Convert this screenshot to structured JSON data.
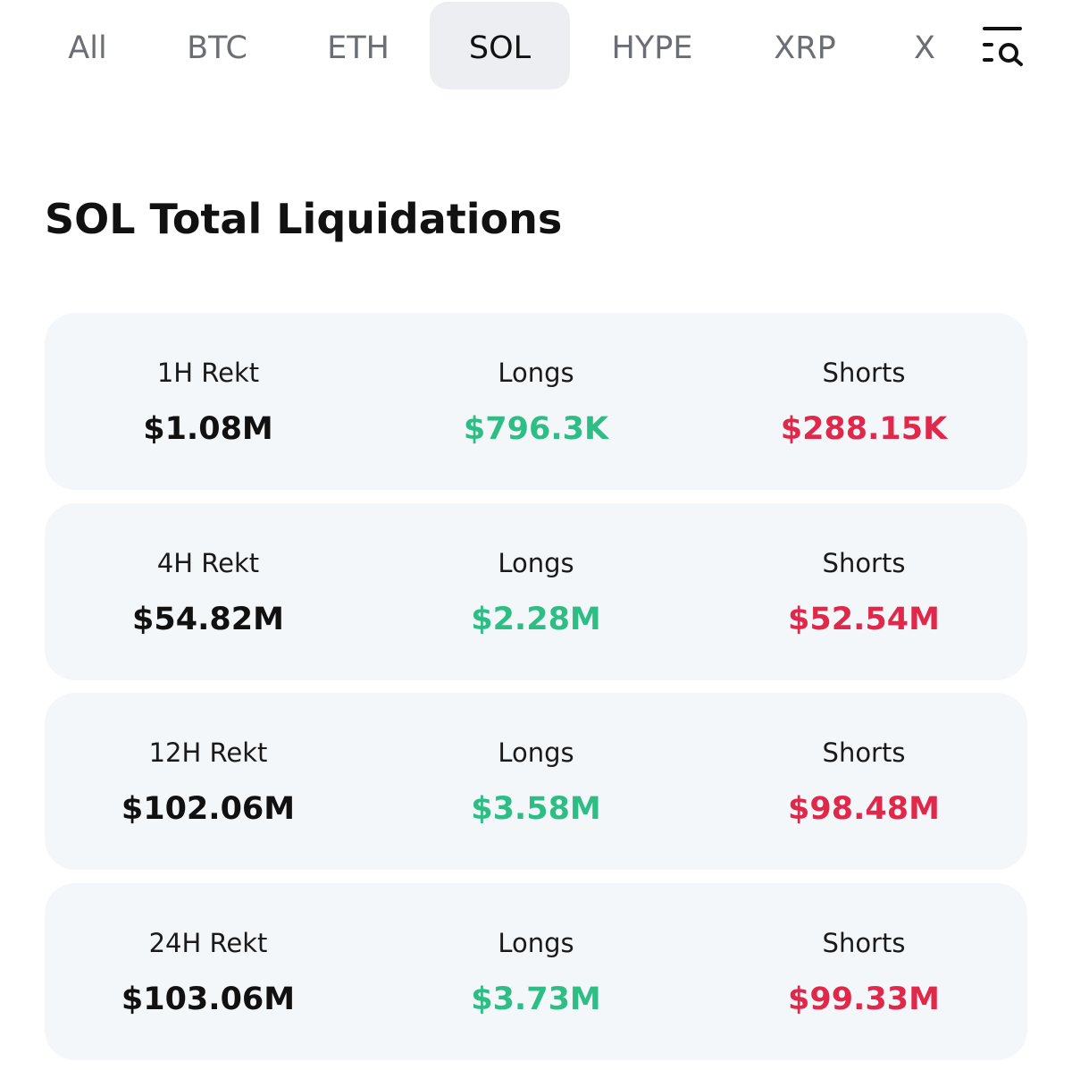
{
  "tabs": [
    {
      "label": "All"
    },
    {
      "label": "BTC"
    },
    {
      "label": "ETH"
    },
    {
      "label": "SOL",
      "active": true
    },
    {
      "label": "HYPE"
    },
    {
      "label": "XRP"
    },
    {
      "label": "X"
    }
  ],
  "filter_icon": "filter-search-icon",
  "title": "SOL Total Liquidations",
  "colors": {
    "longs": "#2ebd85",
    "shorts": "#e0294a",
    "card_bg": "#f4f7fa",
    "active_tab_bg": "#eceef2"
  },
  "rows": [
    {
      "period_label": "1H Rekt",
      "total": "$1.08M",
      "longs_label": "Longs",
      "longs": "$796.3K",
      "shorts_label": "Shorts",
      "shorts": "$288.15K"
    },
    {
      "period_label": "4H Rekt",
      "total": "$54.82M",
      "longs_label": "Longs",
      "longs": "$2.28M",
      "shorts_label": "Shorts",
      "shorts": "$52.54M"
    },
    {
      "period_label": "12H Rekt",
      "total": "$102.06M",
      "longs_label": "Longs",
      "longs": "$3.58M",
      "shorts_label": "Shorts",
      "shorts": "$98.48M"
    },
    {
      "period_label": "24H Rekt",
      "total": "$103.06M",
      "longs_label": "Longs",
      "longs": "$3.73M",
      "shorts_label": "Shorts",
      "shorts": "$99.33M"
    }
  ]
}
